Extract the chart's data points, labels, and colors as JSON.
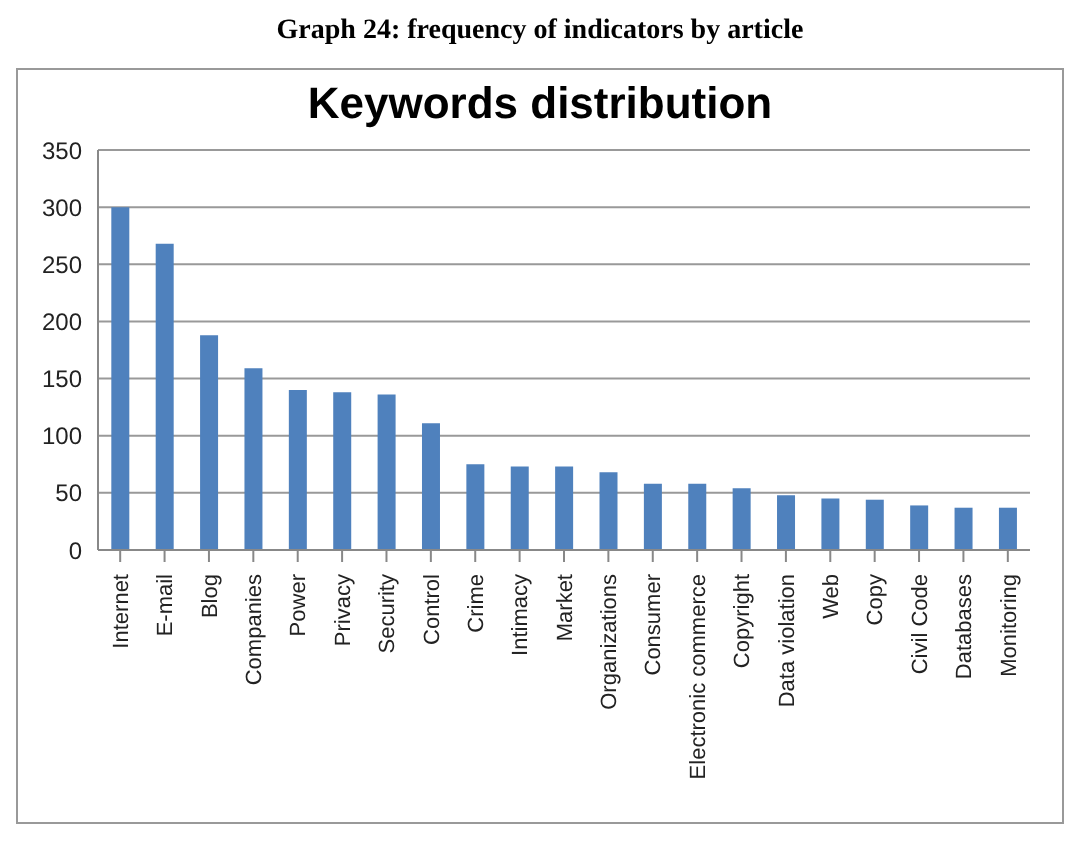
{
  "chart_data": {
    "type": "bar",
    "title": "Graph 24: frequency of indicators by article",
    "subtitle": "Keywords distribution",
    "categories": [
      "Internet",
      "E-mail",
      "Blog",
      "Companies",
      "Power",
      "Privacy",
      "Security",
      "Control",
      "Crime",
      "Intimacy",
      "Market",
      "Organizations",
      "Consumer",
      "Electronic commerce",
      "Copyright",
      "Data violation",
      "Web",
      "Copy",
      "Civil Code",
      "Databases",
      "Monitoring"
    ],
    "values": [
      300,
      268,
      188,
      159,
      140,
      138,
      136,
      111,
      75,
      73,
      73,
      68,
      58,
      58,
      54,
      48,
      45,
      44,
      39,
      37,
      37
    ],
    "color": "#4f81bd",
    "ylim": [
      0,
      350
    ],
    "yticks": [
      0,
      50,
      100,
      150,
      200,
      250,
      300,
      350
    ],
    "grid": "y",
    "legend": false
  }
}
